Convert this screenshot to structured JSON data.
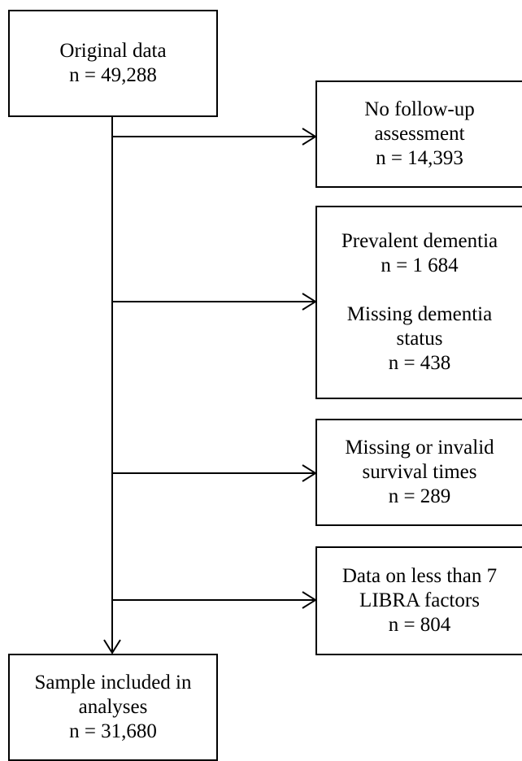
{
  "start": {
    "title": "Original data",
    "count": "n = 49,288"
  },
  "exclusions": [
    {
      "lines": [
        "No follow-up",
        "assessment",
        "n = 14,393"
      ]
    },
    {
      "lines": [
        "Prevalent dementia",
        "n = 1 684",
        "Missing dementia",
        "status",
        "n = 438"
      ]
    },
    {
      "lines": [
        "Missing or invalid",
        "survival times",
        "n = 289"
      ]
    },
    {
      "lines": [
        "Data on less than 7",
        "LIBRA factors",
        "n = 804"
      ]
    }
  ],
  "final": {
    "line1": "Sample included in",
    "line2": "analyses",
    "count": "n = 31,680"
  }
}
